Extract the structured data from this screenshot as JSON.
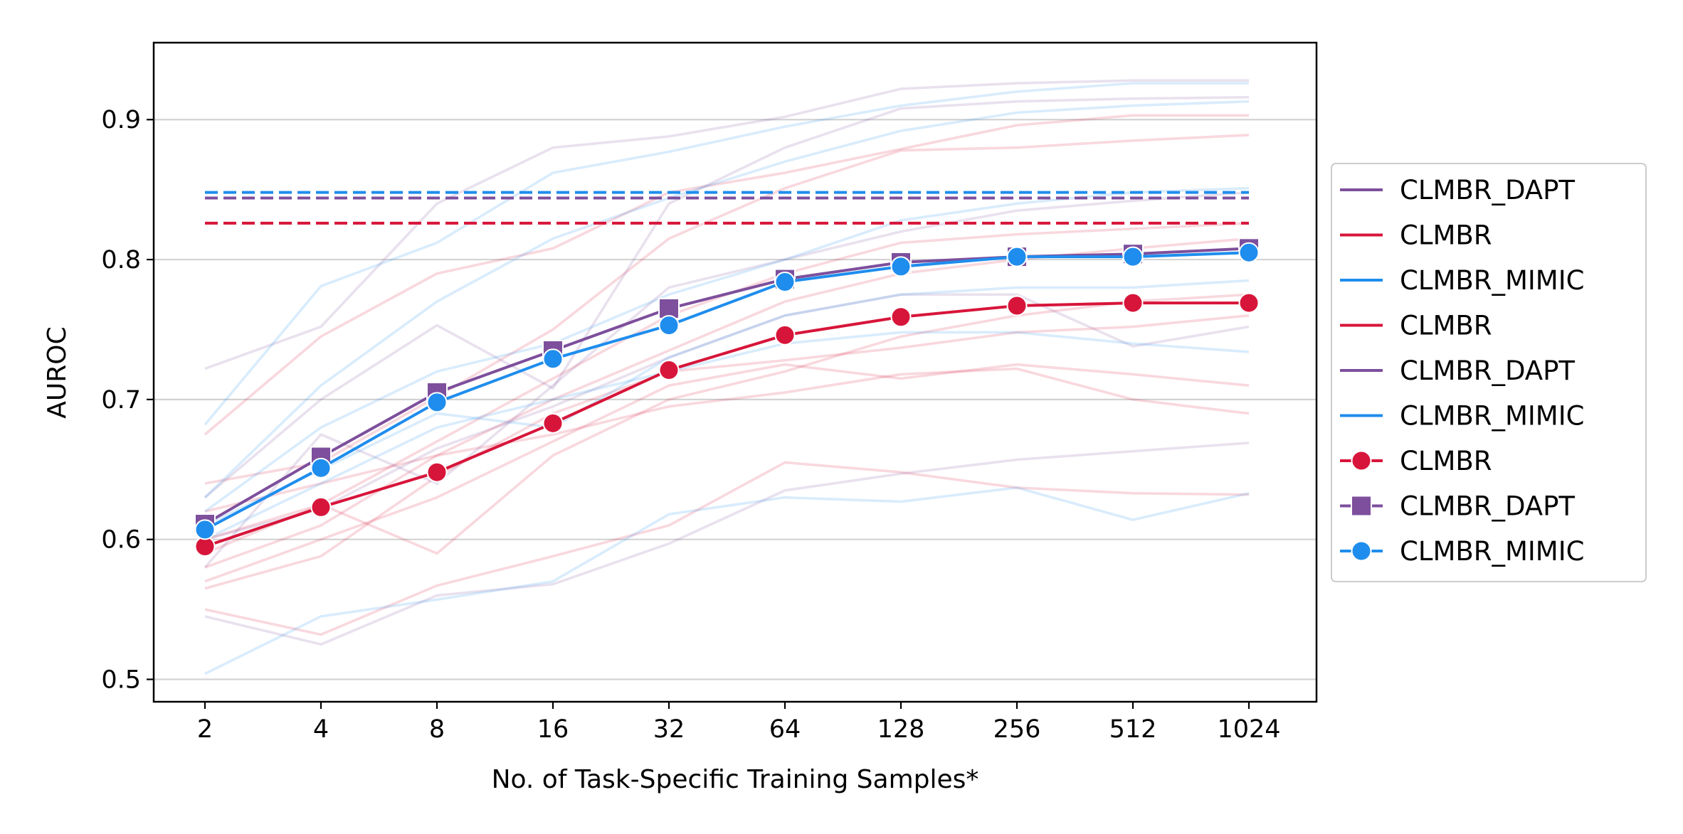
{
  "chart_data": {
    "type": "line",
    "xlabel": "No. of Task-Specific Training Samples*",
    "ylabel": "AUROC",
    "x_categories": [
      "2",
      "4",
      "8",
      "16",
      "32",
      "64",
      "128",
      "256",
      "512",
      "1024"
    ],
    "ylim": [
      0.484,
      0.955
    ],
    "yticks": [
      0.5,
      0.6,
      0.7,
      0.8,
      0.9
    ],
    "ytick_labels": [
      "0.5",
      "0.6",
      "0.7",
      "0.8",
      "0.9"
    ],
    "grid": "horizontal",
    "legend_position": "right-outside",
    "colors": {
      "CLMBR": "#d7153a",
      "CLMBR_DAPT": "#7d4f9c",
      "CLMBR_MIMIC": "#1f8ded"
    },
    "baselines": [
      {
        "name": "CLMBR_DAPT",
        "color": "#7d4f9c",
        "value": 0.844
      },
      {
        "name": "CLMBR",
        "color": "#d7153a",
        "value": 0.826
      },
      {
        "name": "CLMBR_MIMIC",
        "color": "#1f8ded",
        "value": 0.848
      }
    ],
    "series": [
      {
        "name": "CLMBR",
        "color": "#d7153a",
        "marker": "circle",
        "values": [
          0.595,
          0.623,
          0.648,
          0.683,
          0.721,
          0.746,
          0.759,
          0.767,
          0.769,
          0.769
        ]
      },
      {
        "name": "CLMBR_DAPT",
        "color": "#7d4f9c",
        "marker": "square",
        "values": [
          0.611,
          0.659,
          0.705,
          0.735,
          0.765,
          0.786,
          0.798,
          0.802,
          0.804,
          0.808
        ]
      },
      {
        "name": "CLMBR_MIMIC",
        "color": "#1f8ded",
        "marker": "circle",
        "values": [
          0.607,
          0.651,
          0.698,
          0.729,
          0.753,
          0.784,
          0.795,
          0.802,
          0.802,
          0.805
        ]
      }
    ],
    "background_lines": [
      {
        "color": "#d7153a",
        "values": [
          0.675,
          0.745,
          0.79,
          0.808,
          0.848,
          0.862,
          0.879,
          0.896,
          0.903,
          0.903
        ]
      },
      {
        "color": "#d7153a",
        "values": [
          0.64,
          0.655,
          0.702,
          0.75,
          0.815,
          0.851,
          0.878,
          0.88,
          0.885,
          0.889
        ]
      },
      {
        "color": "#d7153a",
        "values": [
          0.59,
          0.625,
          0.67,
          0.715,
          0.76,
          0.79,
          0.812,
          0.818,
          0.822,
          0.826
        ]
      },
      {
        "color": "#d7153a",
        "values": [
          0.58,
          0.61,
          0.66,
          0.7,
          0.735,
          0.77,
          0.79,
          0.8,
          0.808,
          0.815
        ]
      },
      {
        "color": "#d7153a",
        "values": [
          0.6,
          0.625,
          0.59,
          0.66,
          0.7,
          0.72,
          0.745,
          0.76,
          0.77,
          0.775
        ]
      },
      {
        "color": "#d7153a",
        "values": [
          0.565,
          0.588,
          0.645,
          0.69,
          0.72,
          0.728,
          0.737,
          0.748,
          0.752,
          0.76
        ]
      },
      {
        "color": "#d7153a",
        "values": [
          0.57,
          0.6,
          0.63,
          0.67,
          0.71,
          0.725,
          0.715,
          0.725,
          0.718,
          0.71
        ]
      },
      {
        "color": "#d7153a",
        "values": [
          0.62,
          0.64,
          0.66,
          0.675,
          0.695,
          0.705,
          0.718,
          0.722,
          0.7,
          0.69
        ]
      },
      {
        "color": "#d7153a",
        "values": [
          0.55,
          0.532,
          0.567,
          0.588,
          0.61,
          0.655,
          0.648,
          0.637,
          0.633,
          0.632
        ]
      },
      {
        "color": "#7d4f9c",
        "values": [
          0.722,
          0.752,
          0.84,
          0.88,
          0.888,
          0.902,
          0.922,
          0.926,
          0.928,
          0.928
        ]
      },
      {
        "color": "#7d4f9c",
        "values": [
          0.63,
          0.7,
          0.753,
          0.708,
          0.84,
          0.88,
          0.908,
          0.913,
          0.915,
          0.916
        ]
      },
      {
        "color": "#7d4f9c",
        "values": [
          0.58,
          0.675,
          0.64,
          0.71,
          0.78,
          0.8,
          0.82,
          0.835,
          0.842,
          0.848
        ]
      },
      {
        "color": "#7d4f9c",
        "values": [
          0.6,
          0.622,
          0.665,
          0.695,
          0.73,
          0.76,
          0.775,
          0.775,
          0.738,
          0.752
        ]
      },
      {
        "color": "#7d4f9c",
        "values": [
          0.545,
          0.525,
          0.56,
          0.568,
          0.597,
          0.635,
          0.647,
          0.657,
          0.663,
          0.669
        ]
      },
      {
        "color": "#1f8ded",
        "values": [
          0.682,
          0.781,
          0.812,
          0.862,
          0.877,
          0.895,
          0.91,
          0.92,
          0.926,
          0.926
        ]
      },
      {
        "color": "#1f8ded",
        "values": [
          0.63,
          0.71,
          0.77,
          0.815,
          0.844,
          0.87,
          0.892,
          0.905,
          0.91,
          0.913
        ]
      },
      {
        "color": "#1f8ded",
        "values": [
          0.62,
          0.68,
          0.72,
          0.74,
          0.775,
          0.8,
          0.828,
          0.84,
          0.848,
          0.851
        ]
      },
      {
        "color": "#1f8ded",
        "values": [
          0.61,
          0.65,
          0.69,
          0.68,
          0.73,
          0.76,
          0.775,
          0.78,
          0.78,
          0.785
        ]
      },
      {
        "color": "#1f8ded",
        "values": [
          0.6,
          0.64,
          0.68,
          0.7,
          0.72,
          0.74,
          0.748,
          0.748,
          0.74,
          0.734
        ]
      },
      {
        "color": "#1f8ded",
        "values": [
          0.504,
          0.545,
          0.557,
          0.57,
          0.618,
          0.63,
          0.627,
          0.637,
          0.614,
          0.633
        ]
      }
    ],
    "legend": [
      {
        "label": "CLMBR_DAPT",
        "color": "#7d4f9c",
        "marker": "none"
      },
      {
        "label": "CLMBR",
        "color": "#d7153a",
        "marker": "none"
      },
      {
        "label": "CLMBR_MIMIC",
        "color": "#1f8ded",
        "marker": "none"
      },
      {
        "label": "CLMBR",
        "color": "#d7153a",
        "marker": "none"
      },
      {
        "label": "CLMBR_DAPT",
        "color": "#7d4f9c",
        "marker": "none"
      },
      {
        "label": "CLMBR_MIMIC",
        "color": "#1f8ded",
        "marker": "none"
      },
      {
        "label": "CLMBR",
        "color": "#d7153a",
        "marker": "circle"
      },
      {
        "label": "CLMBR_DAPT",
        "color": "#7d4f9c",
        "marker": "square"
      },
      {
        "label": "CLMBR_MIMIC",
        "color": "#1f8ded",
        "marker": "circle"
      }
    ]
  }
}
